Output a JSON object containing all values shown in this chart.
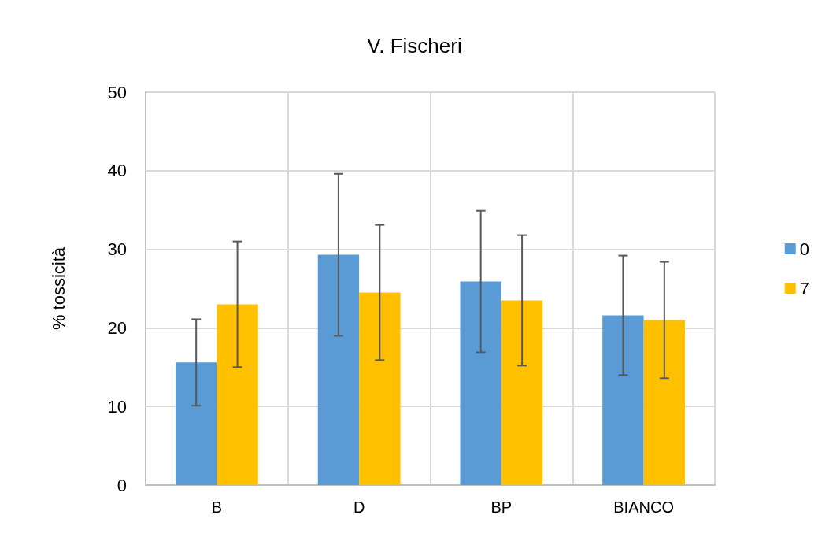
{
  "chart_data": {
    "type": "bar",
    "title": "V. Fischeri",
    "ylabel": "% tossicità",
    "categories": [
      "B",
      "D",
      "BP",
      "BIANCO"
    ],
    "series": [
      {
        "name": "0",
        "color": "#5b9bd5",
        "values": [
          15.6,
          29.3,
          25.9,
          21.6
        ],
        "errors": [
          5.5,
          10.3,
          9.0,
          7.6
        ]
      },
      {
        "name": "7",
        "color": "#ffc000",
        "values": [
          23.0,
          24.5,
          23.5,
          21.0
        ],
        "errors": [
          8.0,
          8.6,
          8.3,
          7.4
        ]
      }
    ],
    "ylim": [
      0,
      50
    ],
    "yticks": [
      0,
      10,
      20,
      30,
      40,
      50
    ],
    "grid": true,
    "legend": "right"
  }
}
